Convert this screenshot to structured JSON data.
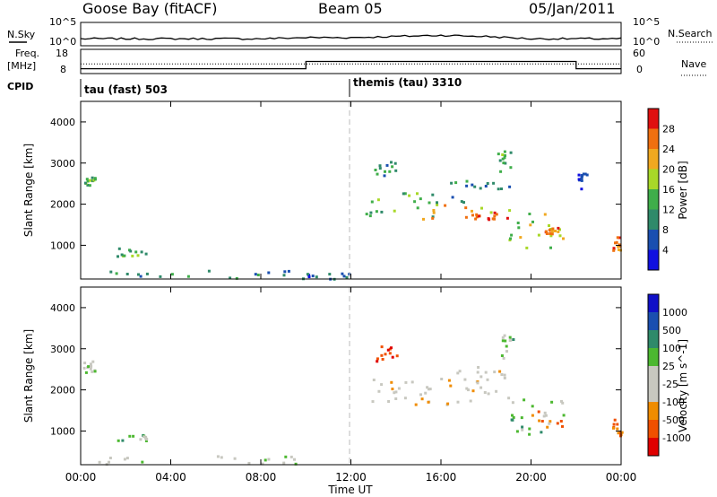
{
  "header": {
    "station": "Goose Bay (fitACF)",
    "beam": "Beam 05",
    "date": "05/Jan/2011"
  },
  "strip_labels": {
    "nsky": "N.Sky",
    "freq_line1": "Freq.",
    "freq_line2": "[MHz]",
    "cpid": "CPID",
    "nsearch": "N.Search",
    "nave": "Nave"
  },
  "strip_ticks": {
    "noise_left": [
      "10^5",
      "10^0"
    ],
    "noise_right": [
      "10^5",
      "10^0"
    ],
    "freq_left": [
      "18",
      "8"
    ],
    "freq_right": [
      "60",
      "0"
    ]
  },
  "cpid": {
    "segments": [
      {
        "label": "tau (fast) 503",
        "start_hour": 0
      },
      {
        "label": "themis (tau) 3310",
        "start_hour": 12
      }
    ]
  },
  "colors": {
    "power": [
      "#1010e0",
      "#1a4fb0",
      "#2f8a6a",
      "#3fae4a",
      "#a8d828",
      "#f0a820",
      "#f07010",
      "#e01010"
    ],
    "velocity": [
      "#e00000",
      "#f05000",
      "#f08c00",
      "#c8c8c0",
      "#c8c8c0",
      "#4cb830",
      "#2f8a6a",
      "#1a4fb0",
      "#1010c8"
    ],
    "noise_line": "#000000",
    "divider": "#bbbbbb"
  },
  "chart_data": [
    {
      "type": "line",
      "title": "N.Sky / N.Search",
      "ylabel": "N.Sky",
      "ylabel_right": "N.Search",
      "xlim": [
        0,
        24
      ],
      "series": [
        {
          "name": "N.Sky",
          "x": [
            0,
            2,
            4,
            6,
            8,
            10,
            12,
            14,
            16,
            18,
            20,
            22,
            24
          ],
          "y": [
            0.3,
            0.3,
            0.3,
            0.3,
            0.3,
            0.35,
            0.35,
            0.4,
            0.45,
            0.4,
            0.3,
            0.3,
            0.3
          ]
        }
      ]
    },
    {
      "type": "line",
      "title": "Freq. / Nave",
      "ylabel": "Freq. [MHz]",
      "ylabel_right": "Nave",
      "xlim": [
        0,
        24
      ],
      "ylim": [
        8,
        18
      ],
      "series": [
        {
          "name": "Freq.",
          "x": [
            0,
            10,
            10,
            22,
            22,
            24
          ],
          "y": [
            10,
            10,
            13,
            13,
            10,
            10
          ]
        },
        {
          "name": "Nave",
          "x": [
            0,
            24
          ],
          "y": [
            12,
            12
          ]
        }
      ]
    },
    {
      "type": "heatmap",
      "title": "Power",
      "xlabel": "",
      "ylabel": "Slant Range [km]",
      "xlim": [
        0,
        24
      ],
      "ylim": [
        180,
        4500
      ],
      "x_ticks": [
        "00:00",
        "04:00",
        "08:00",
        "12:00",
        "16:00",
        "20:00",
        "00:00"
      ],
      "x_tick_hours": [
        0,
        4,
        8,
        12,
        16,
        20,
        24
      ],
      "y_ticks": [
        1000,
        2000,
        3000,
        4000
      ],
      "colorbar": {
        "label": "Power [dB]",
        "ticks": [
          "4",
          "8",
          "12",
          "16",
          "20",
          "24",
          "28"
        ]
      },
      "regions": [
        {
          "x": [
            0.2,
            10.0
          ],
          "y": [
            200,
            420
          ],
          "level": 2
        },
        {
          "x": [
            1.5,
            3.0
          ],
          "y": [
            760,
            950
          ],
          "level": 3
        },
        {
          "x": [
            0.1,
            0.6
          ],
          "y": [
            2450,
            2750
          ],
          "level": 3
        },
        {
          "x": [
            10.0,
            12.0
          ],
          "y": [
            200,
            350
          ],
          "level": 1
        },
        {
          "x": [
            12.5,
            16.0
          ],
          "y": [
            1650,
            2300
          ],
          "level": 3
        },
        {
          "x": [
            15.0,
            19.0
          ],
          "y": [
            1650,
            2000
          ],
          "level": 5
        },
        {
          "x": [
            17.3,
            19.0
          ],
          "y": [
            1650,
            1850
          ],
          "level": 7
        },
        {
          "x": [
            16.0,
            19.0
          ],
          "y": [
            2000,
            2600
          ],
          "level": 2
        },
        {
          "x": [
            19.0,
            21.5
          ],
          "y": [
            950,
            1800
          ],
          "level": 4
        },
        {
          "x": [
            20.5,
            21.2
          ],
          "y": [
            1300,
            1500
          ],
          "level": 6
        },
        {
          "x": [
            13.0,
            14.0
          ],
          "y": [
            2700,
            3100
          ],
          "level": 2
        },
        {
          "x": [
            18.5,
            19.2
          ],
          "y": [
            2800,
            3400
          ],
          "level": 3
        },
        {
          "x": [
            23.6,
            24.0
          ],
          "y": [
            900,
            1300
          ],
          "level": 6
        },
        {
          "x": [
            22.0,
            22.5
          ],
          "y": [
            2400,
            2800
          ],
          "level": 1
        }
      ]
    },
    {
      "type": "heatmap",
      "title": "Velocity",
      "xlabel": "Time UT",
      "ylabel": "Slant Range [km]",
      "xlim": [
        0,
        24
      ],
      "ylim": [
        180,
        4500
      ],
      "x_ticks": [
        "00:00",
        "04:00",
        "08:00",
        "12:00",
        "16:00",
        "20:00",
        "00:00"
      ],
      "x_tick_hours": [
        0,
        4,
        8,
        12,
        16,
        20,
        24
      ],
      "y_ticks": [
        1000,
        2000,
        3000,
        4000
      ],
      "colorbar": {
        "label": "Velocity [m s^-1]",
        "ticks": [
          "1000",
          "500",
          "100",
          "25",
          "-25",
          "-100",
          "-500",
          "-1000"
        ]
      },
      "regions": [
        {
          "x": [
            0.2,
            10.0
          ],
          "y": [
            200,
            420
          ],
          "level": 4
        },
        {
          "x": [
            1.5,
            3.0
          ],
          "y": [
            760,
            950
          ],
          "level": 5
        },
        {
          "x": [
            0.1,
            0.6
          ],
          "y": [
            2450,
            2750
          ],
          "level": 4
        },
        {
          "x": [
            12.5,
            19.0
          ],
          "y": [
            1650,
            2300
          ],
          "level": 3
        },
        {
          "x": [
            16.0,
            19.0
          ],
          "y": [
            2000,
            2600
          ],
          "level": 3
        },
        {
          "x": [
            19.0,
            21.5
          ],
          "y": [
            950,
            1800
          ],
          "level": 5
        },
        {
          "x": [
            20.0,
            21.5
          ],
          "y": [
            1100,
            1500
          ],
          "level": 2
        },
        {
          "x": [
            13.0,
            14.0
          ],
          "y": [
            2700,
            3100
          ],
          "level": 1
        },
        {
          "x": [
            18.5,
            19.2
          ],
          "y": [
            2800,
            3400
          ],
          "level": 5
        },
        {
          "x": [
            23.6,
            24.0
          ],
          "y": [
            900,
            1300
          ],
          "level": 1
        }
      ]
    }
  ]
}
